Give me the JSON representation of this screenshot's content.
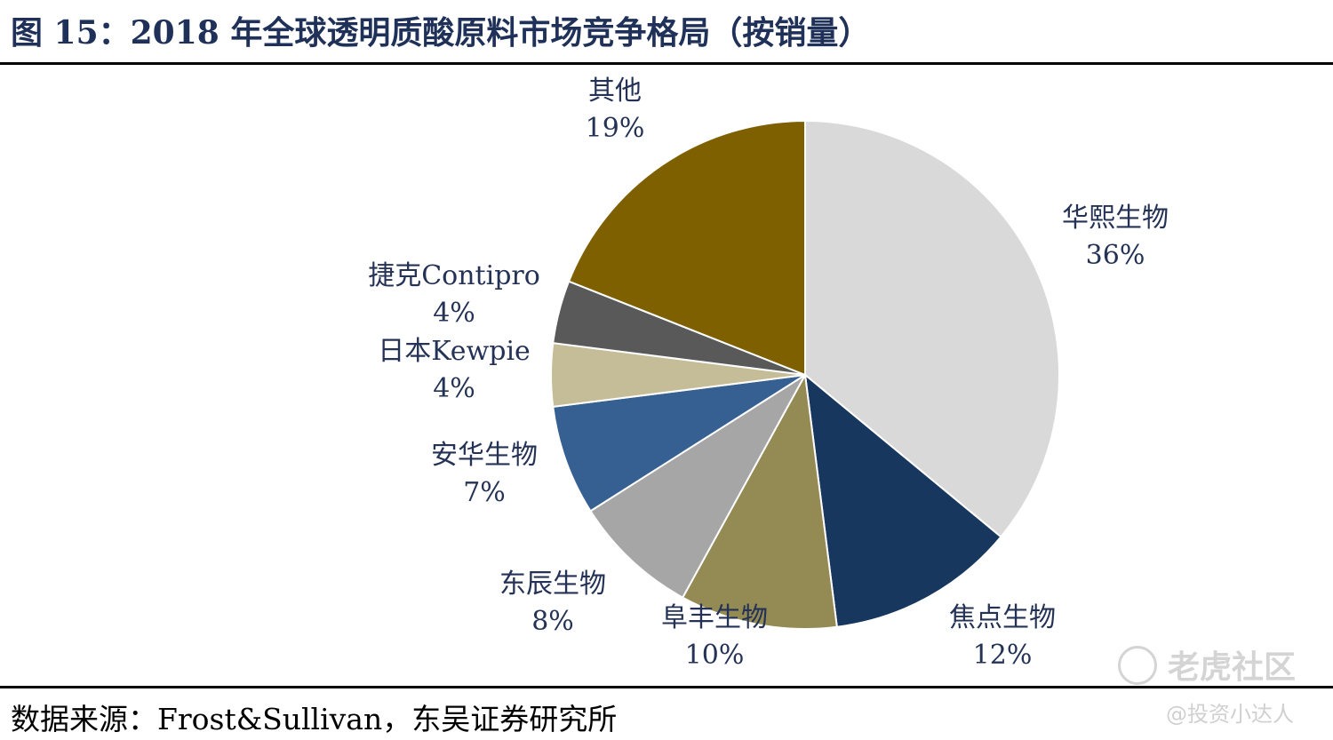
{
  "title": "图 15：2018 年全球透明质酸原料市场竞争格局（按销量）",
  "source": "数据来源：Frost&Sullivan，东吴证券研究所",
  "watermark": {
    "brand": "老虎社区",
    "handle": "@投资小达人"
  },
  "chart_data": {
    "type": "pie",
    "title": "",
    "start": "12 o'clock, clockwise",
    "slices": [
      {
        "name": "华熙生物",
        "value": 36,
        "label": "36%",
        "color": "#d9d9d9"
      },
      {
        "name": "焦点生物",
        "value": 12,
        "label": "12%",
        "color": "#17375e"
      },
      {
        "name": "阜丰生物",
        "value": 10,
        "label": "10%",
        "color": "#948a54"
      },
      {
        "name": "东辰生物",
        "value": 8,
        "label": "8%",
        "color": "#a6a6a6"
      },
      {
        "name": "安华生物",
        "value": 7,
        "label": "7%",
        "color": "#366092"
      },
      {
        "name": "日本Kewpie",
        "value": 4,
        "label": "4%",
        "color": "#c4bd97"
      },
      {
        "name": "捷克Contipro",
        "value": 4,
        "label": "4%",
        "color": "#595959"
      },
      {
        "name": "其他",
        "value": 19,
        "label": "19%",
        "color": "#7f6000"
      }
    ]
  }
}
